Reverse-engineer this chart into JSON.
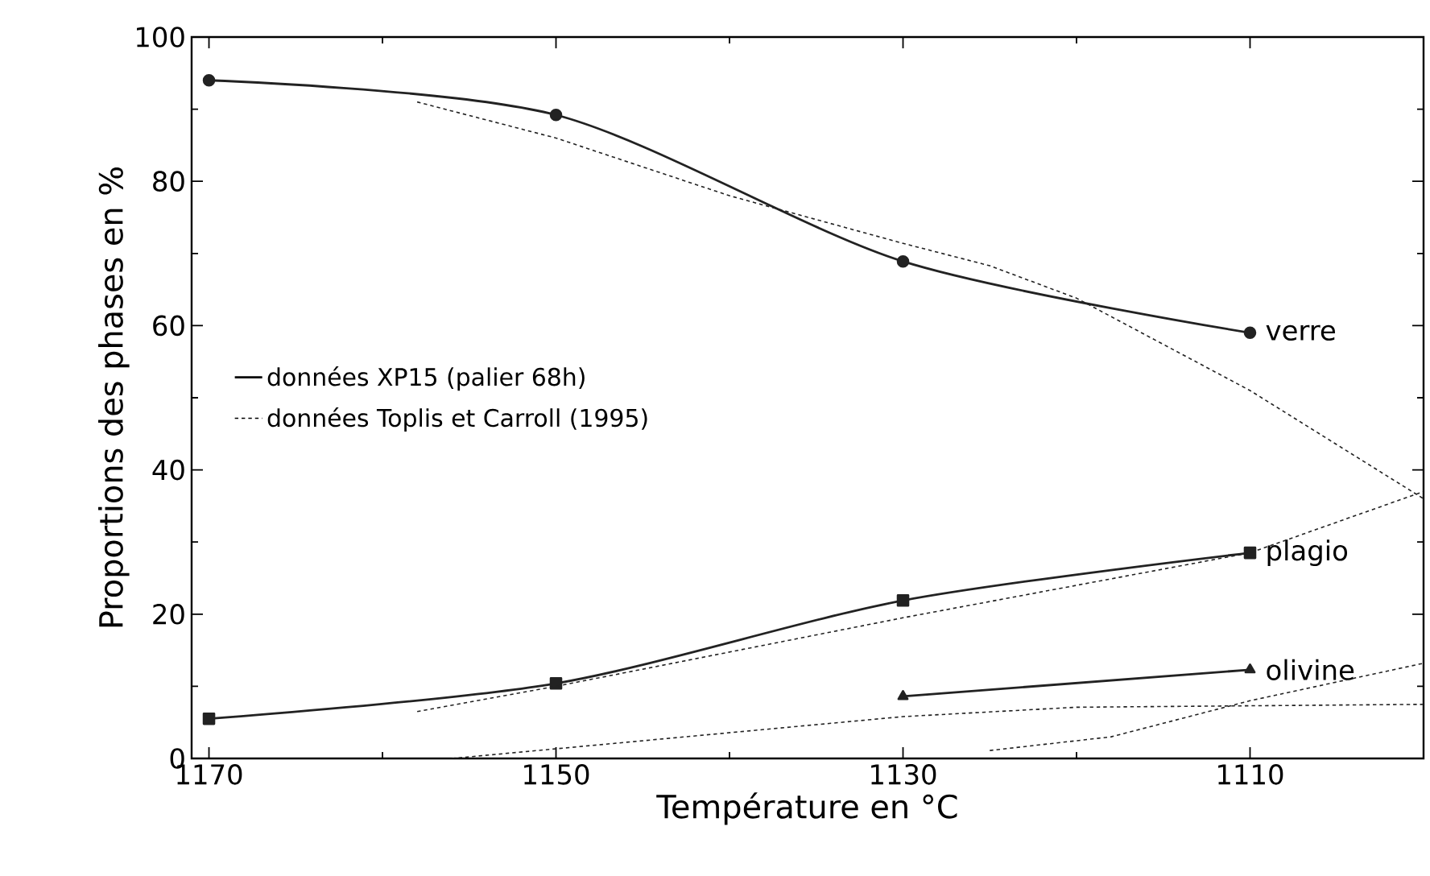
{
  "chart_data": {
    "type": "line",
    "xlabel": "Température en °C",
    "ylabel": "Proportions des phases en %",
    "xlim": [
      1171,
      1100
    ],
    "ylim": [
      0,
      100
    ],
    "xticks": [
      1170,
      1150,
      1130,
      1110
    ],
    "yticks": [
      0,
      20,
      40,
      60,
      80,
      100
    ],
    "grid": false,
    "legend": "right",
    "series": [
      {
        "name": "verre",
        "color": "#222222",
        "marker": "circle",
        "line_style": "solid",
        "x": [
          1170,
          1150,
          1130,
          1110
        ],
        "values": [
          94,
          89.2,
          68.9,
          59
        ]
      },
      {
        "name": "plagio",
        "color": "#222222",
        "marker": "square",
        "line_style": "solid",
        "x": [
          1170,
          1150,
          1130,
          1110
        ],
        "values": [
          5.5,
          10.4,
          21.9,
          28.5
        ]
      },
      {
        "name": "olivine",
        "color": "#222222",
        "marker": "triangle",
        "line_style": "solid",
        "x": [
          1130,
          1110
        ],
        "values": [
          8.6,
          12.3
        ]
      },
      {
        "color": "#222222",
        "marker": "none",
        "line_style": "dotted",
        "x": [
          1158,
          1150,
          1140,
          1130,
          1125,
          1120,
          1110,
          1100
        ],
        "values": [
          91,
          86,
          78,
          71.4,
          68.3,
          63.8,
          51,
          36
        ]
      },
      {
        "color": "#222222",
        "marker": "none",
        "line_style": "dotted",
        "x": [
          1158,
          1150,
          1130,
          1110,
          1100
        ],
        "values": [
          6.5,
          10,
          19.5,
          28.5,
          37
        ]
      },
      {
        "color": "#222222",
        "marker": "none",
        "line_style": "dotted",
        "x": [
          1156,
          1130,
          1120,
          1100
        ],
        "values": [
          0,
          5.8,
          7.1,
          7.5
        ]
      },
      {
        "color": "#222222",
        "marker": "none",
        "line_style": "dotted",
        "x": [
          1125,
          1118,
          1110,
          1100
        ],
        "values": [
          1.1,
          3,
          8,
          13.2
        ]
      }
    ],
    "annotations": [
      "données XP15 (palier 68h)",
      "données Toplis et Carroll (1995)"
    ]
  }
}
